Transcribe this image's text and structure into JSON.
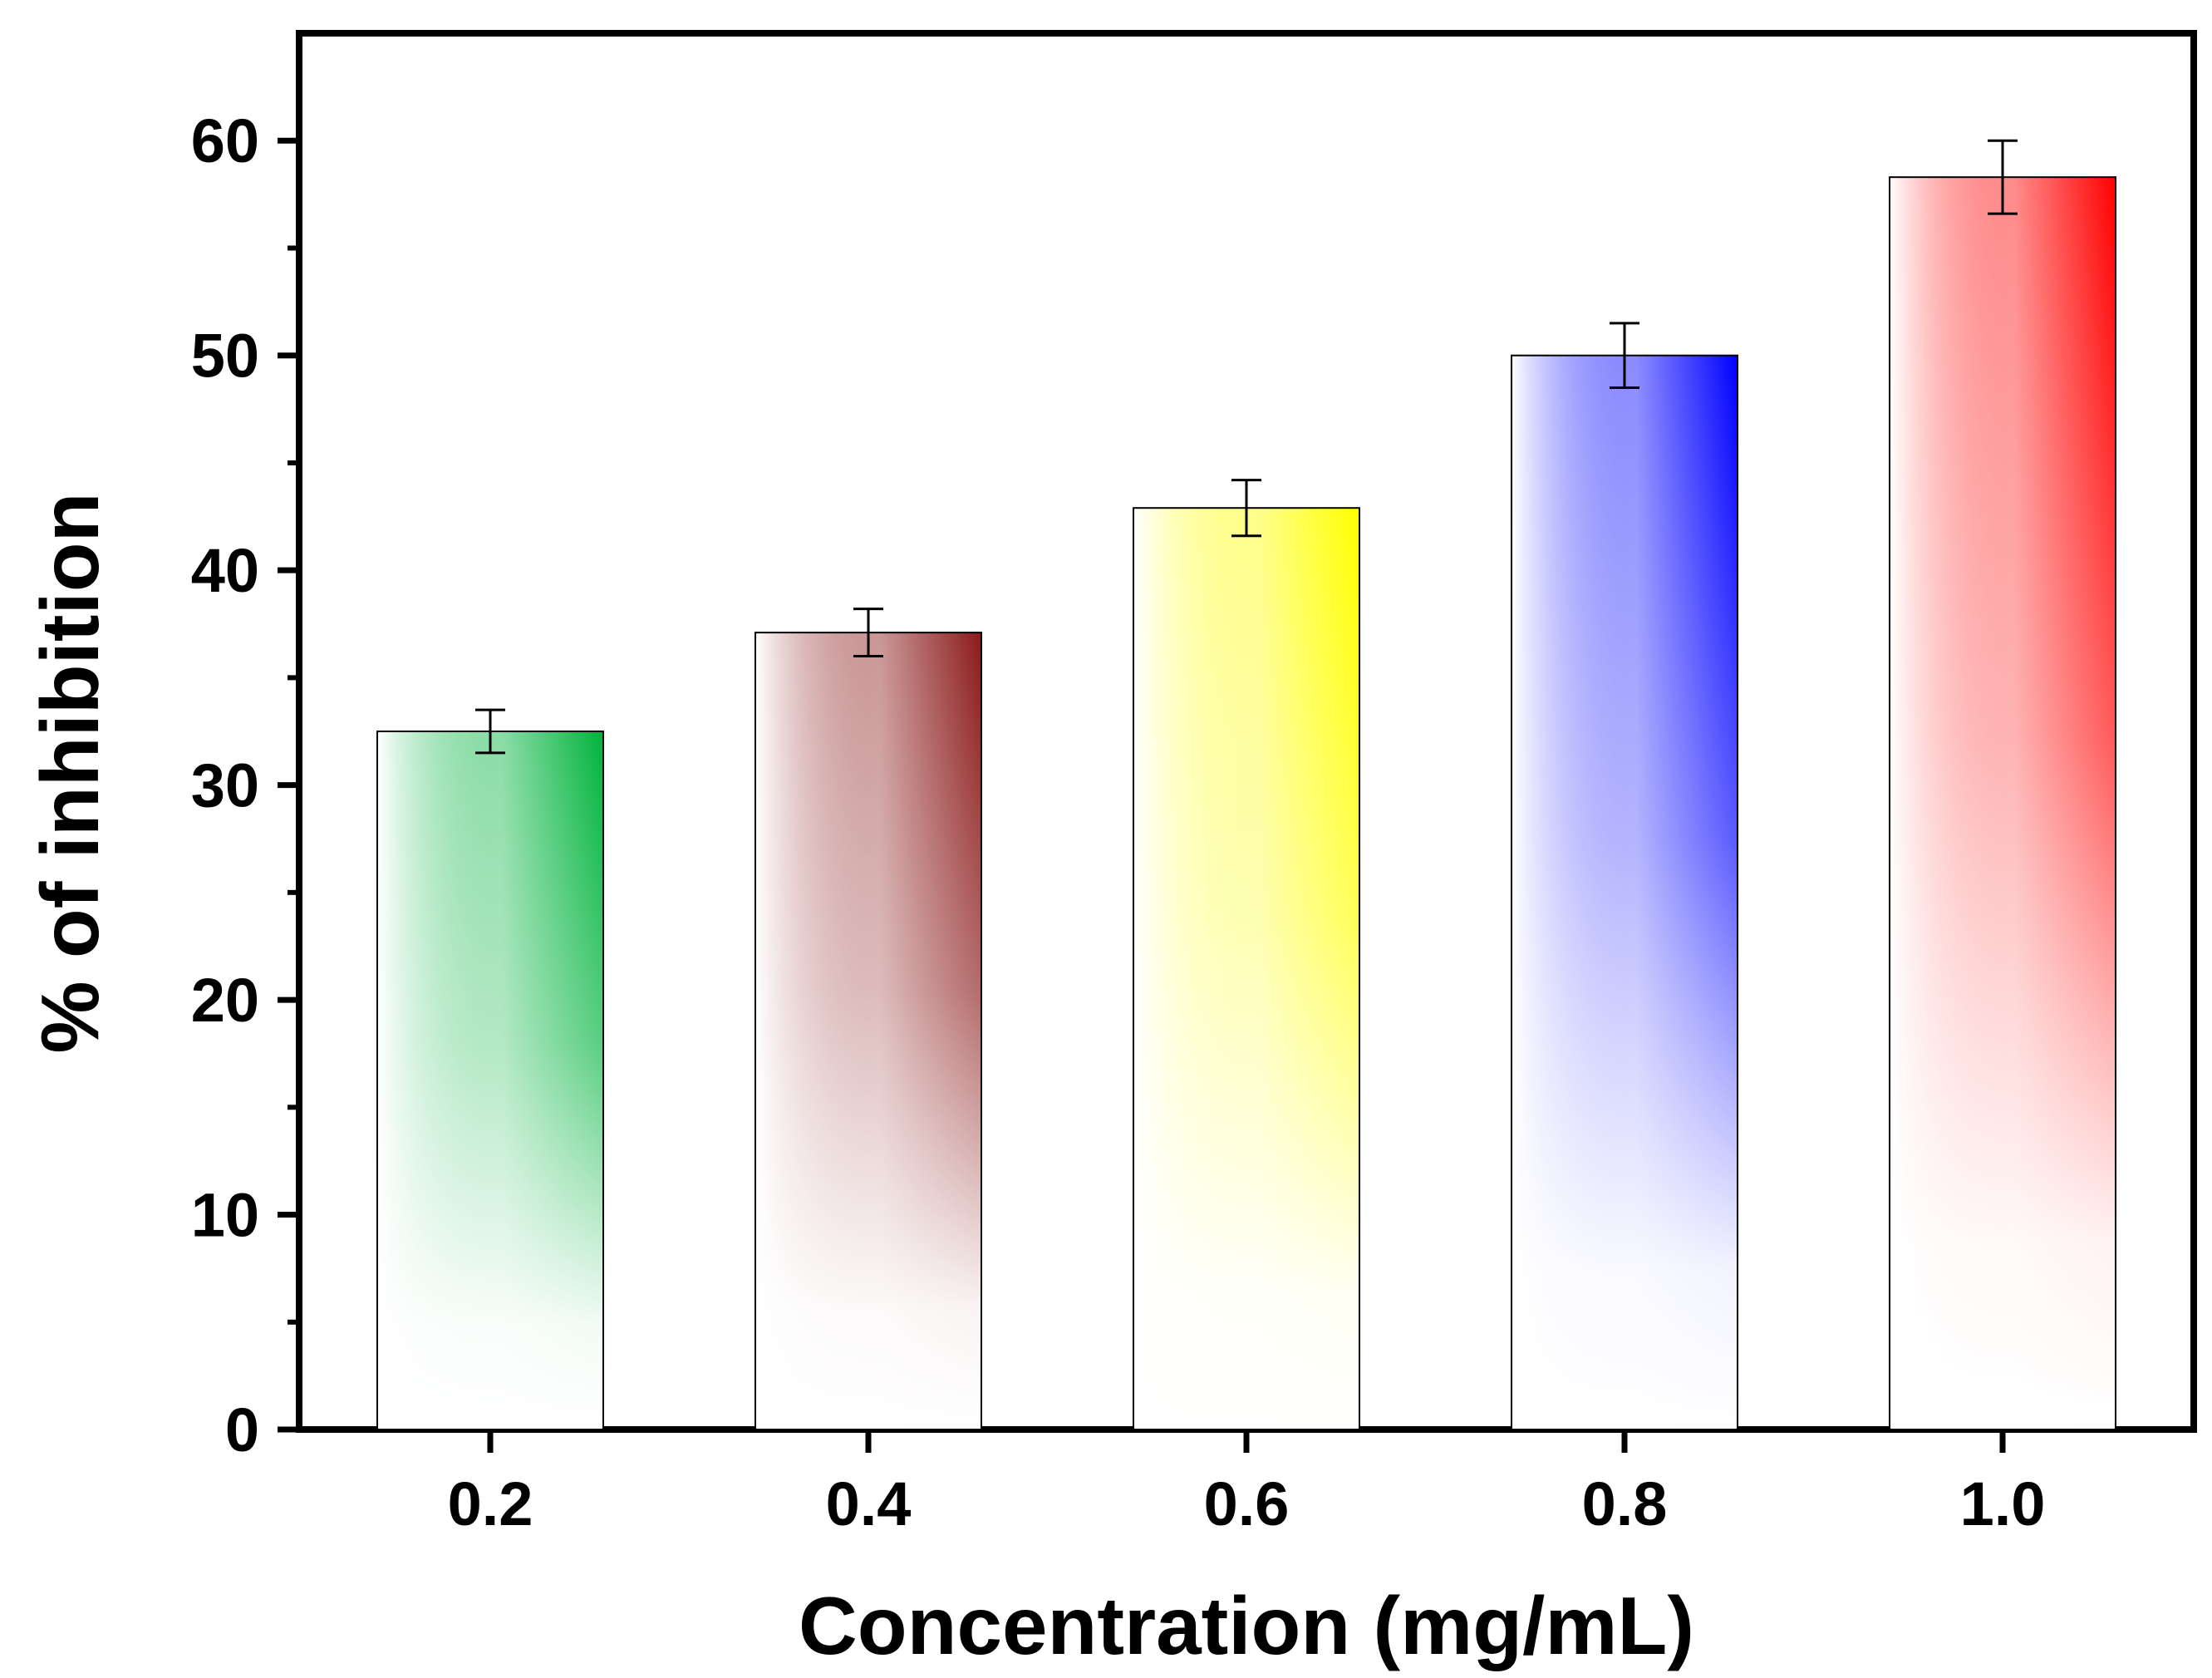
{
  "chart_data": {
    "type": "bar",
    "title": "",
    "xlabel": "Concentration (mg/mL)",
    "ylabel": "% of inhibition",
    "categories": [
      "0.2",
      "0.4",
      "0.6",
      "0.8",
      "1.0"
    ],
    "values": [
      32.5,
      37.1,
      42.9,
      50.0,
      58.3
    ],
    "errors": [
      1.0,
      1.1,
      1.3,
      1.5,
      1.7
    ],
    "colors": [
      "#00b33c",
      "#8b1a1a",
      "#ffff00",
      "#0000ff",
      "#ff0000"
    ],
    "ylim": [
      0,
      65
    ],
    "yticks": [
      "0",
      "10",
      "20",
      "30",
      "40",
      "50",
      "60"
    ],
    "grid": false,
    "legend": "none"
  }
}
